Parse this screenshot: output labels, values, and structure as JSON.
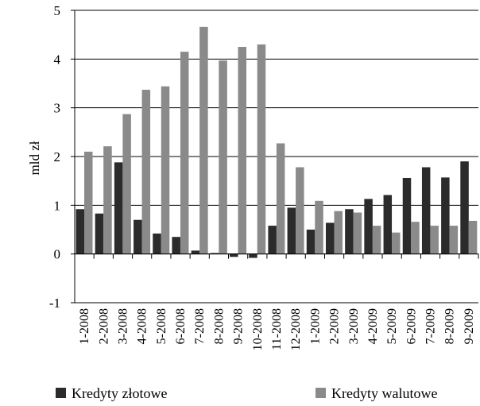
{
  "chart_data": {
    "type": "bar",
    "ylabel": "mld zł",
    "ylim": [
      -1,
      5
    ],
    "yticks": [
      -1,
      0,
      1,
      2,
      3,
      4,
      5
    ],
    "grid": "horizontal",
    "legend_placement": "bottom",
    "categories": [
      "1-2008",
      "2-2008",
      "3-2008",
      "4-2008",
      "5-2008",
      "6-2008",
      "7-2008",
      "8-2008",
      "9-2008",
      "10-2008",
      "11-2008",
      "12-2008",
      "1-2009",
      "2-2009",
      "3-2009",
      "4-2009",
      "5-2009",
      "6-2009",
      "7-2009",
      "8-2009",
      "9-2009"
    ],
    "series": [
      {
        "name": "Kredyty złotowe",
        "color": "#2b2b2b",
        "values": [
          0.92,
          0.83,
          1.88,
          0.7,
          0.42,
          0.35,
          0.07,
          0.02,
          -0.06,
          -0.08,
          0.58,
          0.95,
          0.5,
          0.64,
          0.92,
          1.13,
          1.21,
          1.56,
          1.78,
          1.57,
          1.9
        ]
      },
      {
        "name": "Kredyty walutowe",
        "color": "#8a8a8a",
        "values": [
          2.1,
          2.21,
          2.87,
          3.37,
          3.44,
          4.15,
          4.66,
          3.97,
          4.25,
          4.3,
          2.27,
          1.78,
          1.09,
          0.88,
          0.85,
          0.58,
          0.44,
          0.66,
          0.58,
          0.58,
          0.68
        ]
      }
    ]
  }
}
